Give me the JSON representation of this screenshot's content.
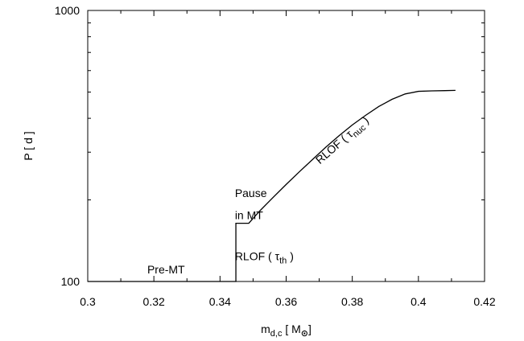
{
  "chart_data": {
    "type": "line",
    "title": "",
    "xlabel": {
      "main": "m",
      "sub": "d,c",
      "rest": " [ M",
      "sym": "⊙",
      "close": "]"
    },
    "ylabel": "P [ d ]",
    "xlim": [
      0.3,
      0.42
    ],
    "ylim": [
      100,
      1000
    ],
    "yscale": "log",
    "grid": false,
    "x_ticks": [
      0.3,
      0.32,
      0.34,
      0.36,
      0.38,
      0.4,
      0.42
    ],
    "x_tick_labels": [
      "0.3",
      "0.32",
      "0.34",
      "0.36",
      "0.38",
      "0.4",
      "0.42"
    ],
    "y_ticks": [
      100,
      1000
    ],
    "y_tick_labels": [
      "100",
      "1000"
    ],
    "series": [
      {
        "color": "#000000",
        "x": [
          0.3,
          0.3448,
          0.3448,
          0.3487,
          0.352,
          0.356,
          0.36,
          0.364,
          0.368,
          0.372,
          0.376,
          0.38,
          0.384,
          0.388,
          0.392,
          0.396,
          0.4,
          0.404,
          0.408,
          0.4112
        ],
        "y": [
          100,
          100,
          164,
          164,
          182,
          204,
          228,
          254,
          282,
          313,
          345,
          378,
          410,
          442,
          470,
          492,
          503,
          505,
          506,
          507
        ]
      }
    ],
    "annotations": [
      {
        "text": "Pre-MT",
        "x": 0.318,
        "y": 107
      },
      {
        "text": "Pause",
        "x": 0.3445,
        "y": 205
      },
      {
        "text": "in MT",
        "x": 0.3445,
        "y": 170
      },
      {
        "text_main": "RLOF ( ",
        "text_sym": "τ",
        "text_sub": "th",
        "text_close": " )",
        "x": 0.3445,
        "y": 120
      },
      {
        "text_main": "RLOF ( ",
        "text_sym": "τ",
        "text_sub": "nuc",
        "text_close": " )",
        "x": 0.3702,
        "y": 270,
        "rotation": -41
      }
    ]
  }
}
